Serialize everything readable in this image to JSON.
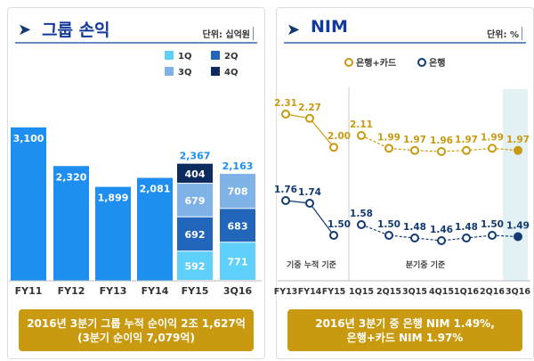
{
  "left": {
    "title": "그룹 손익",
    "unit": "단위: 십억원",
    "note_line1": "2016년 3분기 그룹 누적 순이익 2조 1,627억",
    "note_line2": "(3분기 순이익 7,079억)"
  },
  "right": {
    "title": "NIM",
    "unit": "단위: %",
    "note_line1": "2016년 3분기 중 은행 NIM 1.49%,",
    "note_line2": "은행+카드 NIM 1.97%",
    "section_cumulative": "기중 누적 기준",
    "section_quarterly": "분기중 기준"
  },
  "chart_data": [
    {
      "type": "bar",
      "categories": [
        "FY11",
        "FY12",
        "FY13",
        "FY14",
        "FY15",
        "3Q16"
      ],
      "values": [
        3100,
        2320,
        1899,
        2081,
        null,
        null
      ],
      "stacked": {
        "FY15": {
          "1Q": 592,
          "2Q": 692,
          "3Q": 679,
          "4Q": 404,
          "total": 2367
        },
        "3Q16": {
          "1Q": 771,
          "2Q": 683,
          "3Q": 708,
          "total": 2163
        }
      },
      "legend": [
        "1Q",
        "2Q",
        "3Q",
        "4Q"
      ],
      "legend_position": "top-right",
      "colors": {
        "annual": "#1e8ff0",
        "1Q": "#5fd0fb",
        "2Q": "#2266bb",
        "3Q": "#7fb3e8",
        "4Q": "#0d2b5e",
        "total_label": "#1e8ff0"
      }
    },
    {
      "type": "line",
      "categories": [
        "FY13",
        "FY14",
        "FY15",
        "1Q15",
        "2Q15",
        "3Q15",
        "4Q15",
        "1Q16",
        "2Q16",
        "3Q16"
      ],
      "series": [
        {
          "name": "은행+카드",
          "values": [
            2.31,
            2.27,
            2.0,
            2.11,
            1.99,
            1.97,
            1.96,
            1.97,
            1.99,
            1.97
          ],
          "color": "#c99a10"
        },
        {
          "name": "은행",
          "values": [
            1.76,
            1.74,
            1.5,
            1.58,
            1.5,
            1.48,
            1.46,
            1.48,
            1.5,
            1.49
          ],
          "color": "#123a72"
        }
      ],
      "legend_position": "top"
    }
  ]
}
